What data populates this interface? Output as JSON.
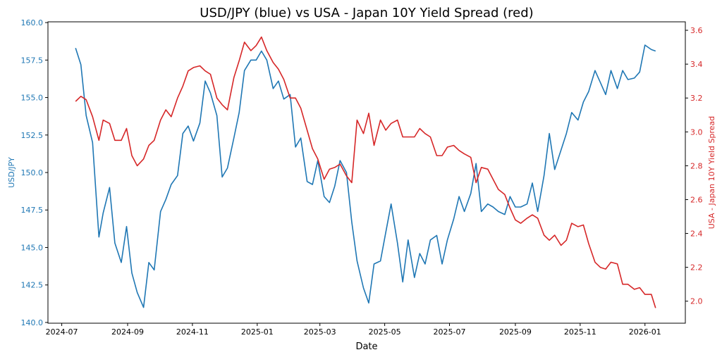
{
  "chart_data": {
    "type": "line",
    "title": "USD/JPY (blue) vs USA - Japan 10Y Yield Spread (red)",
    "xlabel": "Date",
    "ylabel_left": "USD/JPY",
    "ylabel_right": "USA - Japan 10Y Yield Spread",
    "xlim": [
      "2024-06-18",
      "2026-02-08"
    ],
    "ylim_left": [
      139.95,
      160.05
    ],
    "ylim_right": [
      1.87,
      3.65
    ],
    "x_ticks": [
      "2024-07",
      "2024-09",
      "2024-11",
      "2025-01",
      "2025-03",
      "2025-05",
      "2025-07",
      "2025-09",
      "2025-11",
      "2026-01"
    ],
    "y_ticks_left": [
      "140.0",
      "142.5",
      "145.0",
      "147.5",
      "150.0",
      "152.5",
      "155.0",
      "157.5",
      "160.0"
    ],
    "y_ticks_right": [
      "2.0",
      "2.2",
      "2.4",
      "2.6",
      "2.8",
      "3.0",
      "3.2",
      "3.4",
      "3.6"
    ],
    "grid": false,
    "colors": {
      "left": "#1f77b4",
      "right": "#d62728"
    },
    "dates": [
      "2024-07-14",
      "2024-07-19",
      "2024-07-24",
      "2024-07-30",
      "2024-08-05",
      "2024-08-09",
      "2024-08-15",
      "2024-08-20",
      "2024-08-26",
      "2024-08-31",
      "2024-09-05",
      "2024-09-10",
      "2024-09-16",
      "2024-09-21",
      "2024-09-26",
      "2024-10-02",
      "2024-10-07",
      "2024-10-12",
      "2024-10-18",
      "2024-10-23",
      "2024-10-28",
      "2024-11-02",
      "2024-11-08",
      "2024-11-13",
      "2024-11-18",
      "2024-11-24",
      "2024-11-29",
      "2024-12-04",
      "2024-12-10",
      "2024-12-15",
      "2024-12-20",
      "2024-12-26",
      "2024-12-31",
      "2025-01-05",
      "2025-01-10",
      "2025-01-16",
      "2025-01-21",
      "2025-01-26",
      "2025-02-01",
      "2025-02-06",
      "2025-02-11",
      "2025-02-17",
      "2025-02-22",
      "2025-02-27",
      "2025-03-05",
      "2025-03-10",
      "2025-03-15",
      "2025-03-20",
      "2025-03-26",
      "2025-03-31",
      "2025-04-05",
      "2025-04-11",
      "2025-04-16",
      "2025-04-21",
      "2025-04-27",
      "2025-05-02",
      "2025-05-07",
      "2025-05-13",
      "2025-05-18",
      "2025-05-23",
      "2025-05-29",
      "2025-06-03",
      "2025-06-08",
      "2025-06-13",
      "2025-06-19",
      "2025-06-24",
      "2025-06-29",
      "2025-07-05",
      "2025-07-10",
      "2025-07-15",
      "2025-07-21",
      "2025-07-26",
      "2025-07-31",
      "2025-08-06",
      "2025-08-11",
      "2025-08-16",
      "2025-08-22",
      "2025-08-27",
      "2025-09-01",
      "2025-09-06",
      "2025-09-12",
      "2025-09-17",
      "2025-09-22",
      "2025-09-28",
      "2025-10-03",
      "2025-10-08",
      "2025-10-14",
      "2025-10-19",
      "2025-10-24",
      "2025-10-30",
      "2025-11-04",
      "2025-11-09",
      "2025-11-15",
      "2025-11-20",
      "2025-11-25",
      "2025-11-30",
      "2025-12-06",
      "2025-12-11",
      "2025-12-16",
      "2025-12-22",
      "2025-12-27",
      "2026-01-01",
      "2026-01-07",
      "2026-01-11"
    ],
    "series": [
      {
        "axis": "left",
        "values": [
          158.3,
          157.2,
          153.8,
          152.0,
          145.7,
          147.3,
          149.0,
          145.3,
          144.0,
          146.4,
          143.3,
          142.0,
          141.0,
          144.0,
          143.5,
          147.4,
          148.2,
          149.2,
          149.8,
          152.6,
          153.1,
          152.1,
          153.3,
          156.1,
          155.3,
          153.8,
          149.7,
          150.3,
          152.3,
          154.0,
          156.8,
          157.5,
          157.5,
          158.1,
          157.5,
          155.6,
          156.1,
          154.9,
          155.2,
          151.7,
          152.3,
          149.4,
          149.2,
          150.8,
          148.4,
          148.0,
          149.1,
          150.8,
          150.0,
          146.7,
          144.1,
          142.3,
          141.3,
          143.9,
          144.1,
          146.0,
          147.9,
          145.3,
          142.7,
          145.5,
          143.0,
          144.6,
          143.9,
          145.5,
          145.8,
          143.9,
          145.5,
          146.9,
          148.4,
          147.4,
          148.6,
          150.6,
          147.4,
          147.9,
          147.7,
          147.4,
          147.2,
          148.4,
          147.7,
          147.7,
          147.9,
          149.3,
          147.4,
          149.8,
          152.6,
          150.2,
          151.5,
          152.6,
          154.0,
          153.5,
          154.7,
          155.4,
          156.8,
          156.0,
          155.2,
          156.8,
          155.6,
          156.8,
          156.2,
          156.3,
          156.7,
          158.5,
          158.2,
          158.1
        ]
      },
      {
        "axis": "right",
        "values": [
          3.18,
          3.21,
          3.19,
          3.09,
          2.95,
          3.07,
          3.05,
          2.95,
          2.95,
          3.02,
          2.86,
          2.8,
          2.84,
          2.92,
          2.95,
          3.07,
          3.13,
          3.09,
          3.2,
          3.27,
          3.36,
          3.38,
          3.39,
          3.36,
          3.34,
          3.2,
          3.16,
          3.13,
          3.32,
          3.42,
          3.53,
          3.48,
          3.51,
          3.56,
          3.48,
          3.41,
          3.37,
          3.31,
          3.2,
          3.2,
          3.14,
          3.01,
          2.9,
          2.84,
          2.72,
          2.78,
          2.79,
          2.81,
          2.74,
          2.7,
          3.07,
          2.99,
          3.11,
          2.92,
          3.07,
          3.01,
          3.05,
          3.07,
          2.97,
          2.97,
          2.97,
          3.02,
          2.99,
          2.97,
          2.86,
          2.86,
          2.91,
          2.92,
          2.89,
          2.87,
          2.85,
          2.7,
          2.79,
          2.78,
          2.72,
          2.66,
          2.63,
          2.55,
          2.48,
          2.46,
          2.49,
          2.51,
          2.49,
          2.39,
          2.36,
          2.39,
          2.33,
          2.36,
          2.46,
          2.44,
          2.45,
          2.34,
          2.23,
          2.2,
          2.19,
          2.23,
          2.22,
          2.1,
          2.1,
          2.07,
          2.08,
          2.04,
          2.04,
          1.96
        ]
      }
    ]
  }
}
